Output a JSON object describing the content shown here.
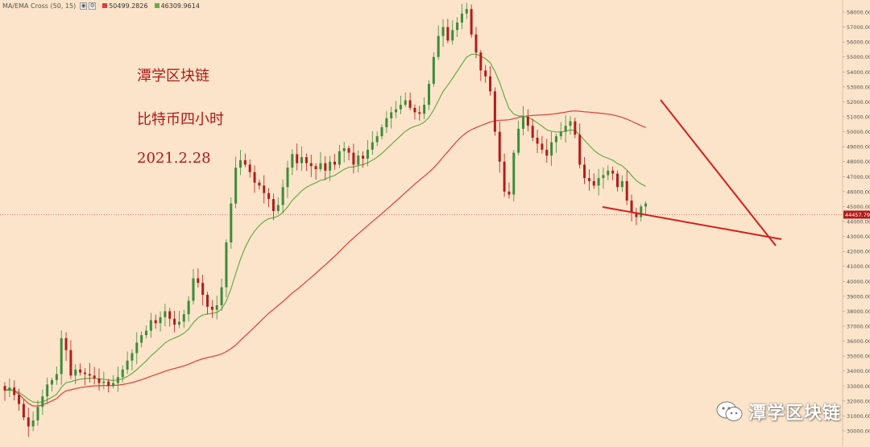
{
  "indicator": {
    "name": "MA/EMA Cross (50, 15)",
    "ma_value": "50499.2826",
    "ema_value": "46309.9614",
    "ma_color": "#e23b3b",
    "ema_color": "#6aaa4a",
    "controls": [
      "eye-icon",
      "settings-icon"
    ]
  },
  "annotations": {
    "title": "潭学区块链",
    "subtitle": "比特币四小时",
    "date": "2021.2.28"
  },
  "watermark": {
    "icon": "wechat-icon",
    "text": "潭学区块链"
  },
  "colors": {
    "background": "#fbe4c9",
    "up": "#3c8c3c",
    "down": "#b31b1b",
    "trendline": "#d41f1f",
    "price_line": "#e06050"
  },
  "chart_data": {
    "type": "candlestick",
    "timeframe": "4h",
    "ylim": [
      29000,
      58500
    ],
    "y_ticks": [
      "30000.00",
      "31000.00",
      "32000.00",
      "33000.00",
      "34000.00",
      "35000.00",
      "36000.00",
      "37000.00",
      "38000.00",
      "39000.00",
      "40000.00",
      "41000.00",
      "42000.00",
      "43000.00",
      "44000.00",
      "45000.00",
      "46000.00",
      "47000.00",
      "48000.00",
      "49000.00",
      "50000.00",
      "51000.00",
      "52000.00",
      "53000.00",
      "54000.00",
      "55000.00",
      "56000.00",
      "57000.00",
      "58000.00"
    ],
    "current_price": 44457.79,
    "current_price_label": "44457.79",
    "closes": [
      32700,
      32900,
      32400,
      31800,
      30900,
      30300,
      30700,
      31600,
      32300,
      33100,
      33400,
      33800,
      36200,
      35400,
      33700,
      34100,
      33900,
      33800,
      33700,
      33500,
      33200,
      33300,
      33000,
      33200,
      33600,
      34100,
      34700,
      35200,
      35900,
      36400,
      36700,
      37400,
      37200,
      37600,
      38000,
      37500,
      37100,
      37300,
      37800,
      38700,
      40200,
      39900,
      39100,
      38300,
      38100,
      38400,
      39600,
      42600,
      45200,
      47600,
      48100,
      47800,
      47300,
      46600,
      46400,
      45900,
      45500,
      44700,
      45100,
      46300,
      47600,
      48500,
      47900,
      48300,
      47900,
      47700,
      47500,
      47900,
      47400,
      48000,
      47800,
      48700,
      48900,
      48600,
      47800,
      48400,
      48200,
      48800,
      49300,
      49700,
      50300,
      50900,
      51300,
      51500,
      51800,
      52100,
      51600,
      51300,
      51200,
      51800,
      53200,
      55000,
      56400,
      57000,
      56100,
      56800,
      57300,
      57900,
      58200,
      56500,
      55300,
      54100,
      53700,
      52700,
      50000,
      48000,
      46000,
      45800,
      48600,
      50200,
      51000,
      50400,
      49600,
      49200,
      48800,
      48400,
      49300,
      49700,
      50000,
      50400,
      50700,
      49800,
      47800,
      46900,
      46700,
      46400,
      46900,
      47100,
      47400,
      47200,
      46300,
      46700,
      45400,
      44600,
      44300,
      45000,
      45200
    ]
  }
}
